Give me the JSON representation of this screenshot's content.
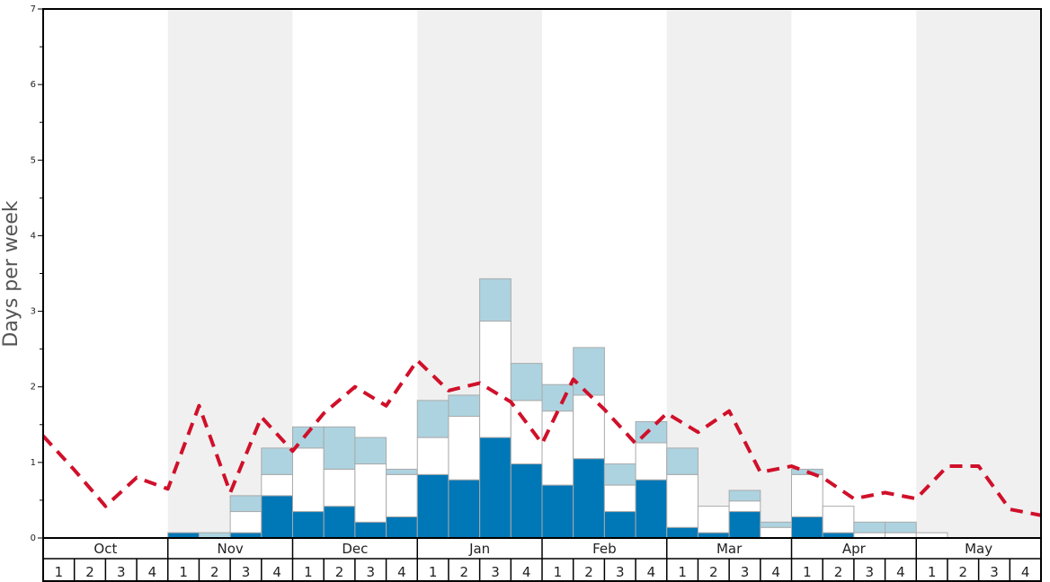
{
  "chart_data": {
    "type": "bar",
    "stacked": true,
    "ylabel": "Days per week",
    "ylim": [
      0,
      7
    ],
    "yticks": [
      "0",
      "1",
      "2",
      "3",
      "4",
      "5",
      "6",
      "7"
    ],
    "months": [
      "Oct",
      "Nov",
      "Dec",
      "Jan",
      "Feb",
      "Mar",
      "Apr",
      "May"
    ],
    "week_labels": [
      "1",
      "2",
      "3",
      "4"
    ],
    "grid": false,
    "band_color": "#f0f0f0",
    "series": [
      {
        "color": "#0077b6",
        "values": [
          0,
          0,
          0,
          0,
          0.07,
          0,
          0.07,
          0.56,
          0.35,
          0.42,
          0.21,
          0.28,
          0.84,
          0.77,
          1.33,
          0.98,
          0.7,
          1.05,
          0.35,
          0.77,
          0.14,
          0.07,
          0.35,
          0,
          0.28,
          0.07,
          0,
          0,
          0,
          0,
          0,
          0
        ]
      },
      {
        "color": "#ffffff",
        "values": [
          0,
          0,
          0,
          0,
          0,
          0,
          0.28,
          0.28,
          0.84,
          0.49,
          0.77,
          0.56,
          0.49,
          0.84,
          1.54,
          0.84,
          0.98,
          0.84,
          0.35,
          0.49,
          0.7,
          0.35,
          0.14,
          0.14,
          0.56,
          0.35,
          0.07,
          0.07,
          0.07,
          0,
          0,
          0
        ]
      },
      {
        "color": "#add3e0",
        "values": [
          0,
          0,
          0,
          0,
          0,
          0.07,
          0.21,
          0.35,
          0.28,
          0.56,
          0.35,
          0.07,
          0.49,
          0.28,
          0.56,
          0.49,
          0.35,
          0.63,
          0.28,
          0.28,
          0.35,
          0,
          0.14,
          0.07,
          0.07,
          0,
          0.14,
          0.14,
          0,
          0,
          0,
          0
        ]
      }
    ],
    "line": {
      "color": "#d0102a",
      "values": [
        1.35,
        0.9,
        0.42,
        0.8,
        0.65,
        1.75,
        0.6,
        1.6,
        1.15,
        1.65,
        2.0,
        1.75,
        2.35,
        1.95,
        2.05,
        1.8,
        1.25,
        2.1,
        1.7,
        1.25,
        1.65,
        1.4,
        1.68,
        0.87,
        0.95,
        0.8,
        0.52,
        0.6,
        0.52,
        0.95,
        0.95,
        0.38,
        0.3
      ]
    }
  }
}
